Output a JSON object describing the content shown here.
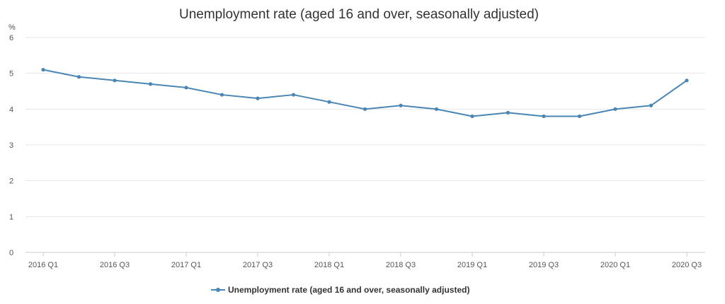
{
  "chart_data": {
    "type": "line",
    "title": "Unemployment rate (aged 16 and over, seasonally adjusted)",
    "y_unit": "%",
    "ylim": [
      0,
      6
    ],
    "yticks": [
      0,
      1,
      2,
      3,
      4,
      5,
      6
    ],
    "grid": true,
    "legend_position": "bottom",
    "categories": [
      "2016 Q1",
      "2016 Q2",
      "2016 Q3",
      "2016 Q4",
      "2017 Q1",
      "2017 Q2",
      "2017 Q3",
      "2017 Q4",
      "2018 Q1",
      "2018 Q2",
      "2018 Q3",
      "2018 Q4",
      "2019 Q1",
      "2019 Q2",
      "2019 Q3",
      "2019 Q4",
      "2020 Q1",
      "2020 Q2",
      "2020 Q3"
    ],
    "x_tick_labels": [
      "2016 Q1",
      "2016 Q3",
      "2017 Q1",
      "2017 Q3",
      "2018 Q1",
      "2018 Q3",
      "2019 Q1",
      "2019 Q3",
      "2020 Q1",
      "2020 Q3"
    ],
    "series": [
      {
        "name": "Unemployment rate (aged 16 and over, seasonally adjusted)",
        "color": "#4a86b4",
        "values": [
          5.1,
          4.9,
          4.8,
          4.7,
          4.6,
          4.4,
          4.3,
          4.4,
          4.2,
          4.0,
          4.1,
          4.0,
          3.8,
          3.9,
          3.8,
          3.8,
          4.0,
          4.1,
          4.8
        ]
      }
    ]
  }
}
